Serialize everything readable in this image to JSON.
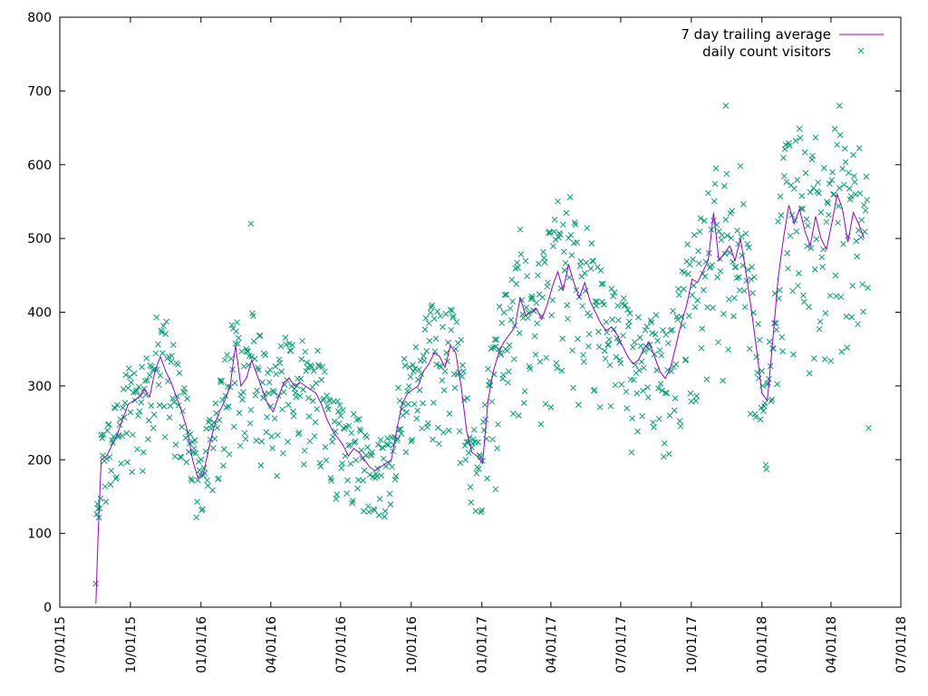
{
  "chart_data": {
    "type": "line",
    "title": "",
    "xlabel": "",
    "ylabel": "",
    "ylim": [
      0,
      800
    ],
    "xlim": [
      "2015-07-01",
      "2018-07-01"
    ],
    "grid": false,
    "legend_position": "top-right",
    "yticks": [
      0,
      100,
      200,
      300,
      400,
      500,
      600,
      700,
      800
    ],
    "xticks": [
      "07/01/15",
      "10/01/15",
      "01/01/16",
      "04/01/16",
      "07/01/16",
      "10/01/16",
      "01/01/17",
      "04/01/17",
      "07/01/17",
      "10/01/17",
      "01/01/18",
      "04/01/18",
      "07/01/18"
    ],
    "colors": {
      "trailing_average": "#9400d3",
      "daily_count": "#009e73"
    },
    "series": [
      {
        "name": "7 day trailing average",
        "style": "line",
        "points": [
          [
            "2015-08-17",
            5
          ],
          [
            "2015-08-20",
            100
          ],
          [
            "2015-08-24",
            200
          ],
          [
            "2015-08-31",
            205
          ],
          [
            "2015-09-07",
            220
          ],
          [
            "2015-09-14",
            235
          ],
          [
            "2015-09-21",
            255
          ],
          [
            "2015-09-28",
            275
          ],
          [
            "2015-10-05",
            280
          ],
          [
            "2015-10-12",
            285
          ],
          [
            "2015-10-19",
            295
          ],
          [
            "2015-10-26",
            285
          ],
          [
            "2015-11-02",
            320
          ],
          [
            "2015-11-09",
            340
          ],
          [
            "2015-11-16",
            320
          ],
          [
            "2015-11-23",
            305
          ],
          [
            "2015-11-30",
            285
          ],
          [
            "2015-12-07",
            265
          ],
          [
            "2015-12-14",
            240
          ],
          [
            "2015-12-21",
            200
          ],
          [
            "2015-12-28",
            175
          ],
          [
            "2016-01-04",
            180
          ],
          [
            "2016-01-11",
            215
          ],
          [
            "2016-01-18",
            245
          ],
          [
            "2016-01-25",
            265
          ],
          [
            "2016-02-01",
            280
          ],
          [
            "2016-02-08",
            300
          ],
          [
            "2016-02-15",
            355
          ],
          [
            "2016-02-22",
            300
          ],
          [
            "2016-02-29",
            310
          ],
          [
            "2016-03-07",
            335
          ],
          [
            "2016-03-14",
            315
          ],
          [
            "2016-03-21",
            295
          ],
          [
            "2016-03-28",
            275
          ],
          [
            "2016-04-04",
            265
          ],
          [
            "2016-04-11",
            285
          ],
          [
            "2016-04-18",
            305
          ],
          [
            "2016-04-25",
            310
          ],
          [
            "2016-05-02",
            300
          ],
          [
            "2016-05-09",
            305
          ],
          [
            "2016-05-16",
            300
          ],
          [
            "2016-05-23",
            295
          ],
          [
            "2016-05-30",
            290
          ],
          [
            "2016-06-06",
            275
          ],
          [
            "2016-06-13",
            255
          ],
          [
            "2016-06-20",
            240
          ],
          [
            "2016-06-27",
            230
          ],
          [
            "2016-07-04",
            220
          ],
          [
            "2016-07-11",
            205
          ],
          [
            "2016-07-18",
            215
          ],
          [
            "2016-07-25",
            210
          ],
          [
            "2016-08-01",
            200
          ],
          [
            "2016-08-08",
            190
          ],
          [
            "2016-08-15",
            185
          ],
          [
            "2016-08-22",
            190
          ],
          [
            "2016-08-29",
            195
          ],
          [
            "2016-09-05",
            200
          ],
          [
            "2016-09-12",
            240
          ],
          [
            "2016-09-19",
            275
          ],
          [
            "2016-09-26",
            290
          ],
          [
            "2016-10-03",
            295
          ],
          [
            "2016-10-10",
            300
          ],
          [
            "2016-10-17",
            320
          ],
          [
            "2016-10-24",
            330
          ],
          [
            "2016-10-31",
            345
          ],
          [
            "2016-11-07",
            340
          ],
          [
            "2016-11-14",
            325
          ],
          [
            "2016-11-21",
            355
          ],
          [
            "2016-11-28",
            345
          ],
          [
            "2016-12-05",
            300
          ],
          [
            "2016-12-12",
            240
          ],
          [
            "2016-12-19",
            210
          ],
          [
            "2016-12-26",
            205
          ],
          [
            "2017-01-02",
            195
          ],
          [
            "2017-01-09",
            280
          ],
          [
            "2017-01-16",
            320
          ],
          [
            "2017-01-23",
            345
          ],
          [
            "2017-01-30",
            360
          ],
          [
            "2017-02-06",
            370
          ],
          [
            "2017-02-13",
            380
          ],
          [
            "2017-02-20",
            420
          ],
          [
            "2017-02-27",
            395
          ],
          [
            "2017-03-06",
            400
          ],
          [
            "2017-03-13",
            405
          ],
          [
            "2017-03-20",
            390
          ],
          [
            "2017-03-27",
            410
          ],
          [
            "2017-04-03",
            435
          ],
          [
            "2017-04-10",
            455
          ],
          [
            "2017-04-17",
            430
          ],
          [
            "2017-04-24",
            465
          ],
          [
            "2017-05-01",
            440
          ],
          [
            "2017-05-08",
            420
          ],
          [
            "2017-05-15",
            440
          ],
          [
            "2017-05-22",
            415
          ],
          [
            "2017-05-29",
            400
          ],
          [
            "2017-06-05",
            385
          ],
          [
            "2017-06-12",
            375
          ],
          [
            "2017-06-19",
            380
          ],
          [
            "2017-06-26",
            370
          ],
          [
            "2017-07-03",
            355
          ],
          [
            "2017-07-10",
            340
          ],
          [
            "2017-07-17",
            330
          ],
          [
            "2017-07-24",
            335
          ],
          [
            "2017-07-31",
            350
          ],
          [
            "2017-08-07",
            360
          ],
          [
            "2017-08-14",
            340
          ],
          [
            "2017-08-21",
            320
          ],
          [
            "2017-08-28",
            310
          ],
          [
            "2017-09-04",
            325
          ],
          [
            "2017-09-11",
            355
          ],
          [
            "2017-09-18",
            385
          ],
          [
            "2017-09-25",
            410
          ],
          [
            "2017-10-02",
            445
          ],
          [
            "2017-10-09",
            440
          ],
          [
            "2017-10-16",
            455
          ],
          [
            "2017-10-23",
            470
          ],
          [
            "2017-10-30",
            535
          ],
          [
            "2017-11-06",
            470
          ],
          [
            "2017-11-13",
            480
          ],
          [
            "2017-11-20",
            490
          ],
          [
            "2017-11-27",
            470
          ],
          [
            "2017-12-04",
            500
          ],
          [
            "2017-12-11",
            455
          ],
          [
            "2017-12-18",
            405
          ],
          [
            "2017-12-25",
            350
          ],
          [
            "2018-01-01",
            290
          ],
          [
            "2018-01-08",
            280
          ],
          [
            "2018-01-15",
            360
          ],
          [
            "2018-01-22",
            445
          ],
          [
            "2018-01-29",
            500
          ],
          [
            "2018-02-05",
            545
          ],
          [
            "2018-02-12",
            520
          ],
          [
            "2018-02-19",
            540
          ],
          [
            "2018-02-26",
            510
          ],
          [
            "2018-03-05",
            490
          ],
          [
            "2018-03-12",
            530
          ],
          [
            "2018-03-19",
            500
          ],
          [
            "2018-03-26",
            485
          ],
          [
            "2018-04-02",
            520
          ],
          [
            "2018-04-09",
            560
          ],
          [
            "2018-04-16",
            540
          ],
          [
            "2018-04-23",
            495
          ],
          [
            "2018-04-30",
            535
          ],
          [
            "2018-05-07",
            520
          ],
          [
            "2018-05-14",
            500
          ]
        ]
      },
      {
        "name": "daily count visitors",
        "style": "points",
        "note": "approximate daily values; rendered from trend with daily spread",
        "highlighted_points": [
          [
            "2015-08-17",
            32
          ],
          [
            "2016-03-06",
            520
          ],
          [
            "2017-11-15",
            680
          ],
          [
            "2018-04-12",
            680
          ],
          [
            "2018-05-20",
            243
          ],
          [
            "2017-01-19",
            160
          ]
        ]
      }
    ]
  }
}
